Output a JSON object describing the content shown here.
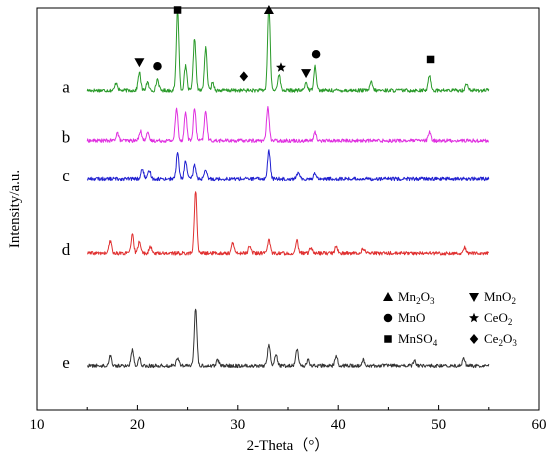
{
  "chart_data": {
    "type": "line",
    "xlabel": "2-Theta（°）",
    "ylabel": "Intensity/a.u.",
    "xlim": [
      10,
      60
    ],
    "xticks": [
      10,
      20,
      30,
      40,
      50,
      60
    ],
    "x_range": [
      15,
      55
    ],
    "y_ticks_shown": false,
    "series": [
      {
        "label": "a",
        "color": "#2a9a2a",
        "baseline": 0.795,
        "peaks": [
          {
            "x": 17.9,
            "h": 0.02
          },
          {
            "x": 20.2,
            "h": 0.045
          },
          {
            "x": 21.0,
            "h": 0.02
          },
          {
            "x": 22.0,
            "h": 0.028
          },
          {
            "x": 24.0,
            "h": 0.2
          },
          {
            "x": 24.8,
            "h": 0.06
          },
          {
            "x": 25.7,
            "h": 0.13
          },
          {
            "x": 26.8,
            "h": 0.105
          },
          {
            "x": 27.5,
            "h": 0.02
          },
          {
            "x": 33.1,
            "h": 0.21
          },
          {
            "x": 34.1,
            "h": 0.04
          },
          {
            "x": 36.8,
            "h": 0.02
          },
          {
            "x": 37.7,
            "h": 0.06
          },
          {
            "x": 43.3,
            "h": 0.02
          },
          {
            "x": 49.1,
            "h": 0.038
          },
          {
            "x": 52.8,
            "h": 0.018
          }
        ]
      },
      {
        "label": "b",
        "color": "#e030e0",
        "baseline": 0.67,
        "peaks": [
          {
            "x": 18.0,
            "h": 0.02
          },
          {
            "x": 20.3,
            "h": 0.025
          },
          {
            "x": 21.0,
            "h": 0.02
          },
          {
            "x": 23.9,
            "h": 0.08
          },
          {
            "x": 24.8,
            "h": 0.07
          },
          {
            "x": 25.7,
            "h": 0.08
          },
          {
            "x": 26.8,
            "h": 0.075
          },
          {
            "x": 33.0,
            "h": 0.085
          },
          {
            "x": 37.7,
            "h": 0.02
          },
          {
            "x": 49.1,
            "h": 0.02
          }
        ]
      },
      {
        "label": "c",
        "color": "#2020d0",
        "baseline": 0.575,
        "peaks": [
          {
            "x": 20.5,
            "h": 0.025
          },
          {
            "x": 21.2,
            "h": 0.02
          },
          {
            "x": 24.0,
            "h": 0.065
          },
          {
            "x": 24.8,
            "h": 0.045
          },
          {
            "x": 25.7,
            "h": 0.035
          },
          {
            "x": 26.8,
            "h": 0.02
          },
          {
            "x": 33.1,
            "h": 0.07
          },
          {
            "x": 36.0,
            "h": 0.015
          },
          {
            "x": 37.7,
            "h": 0.015
          }
        ]
      },
      {
        "label": "d",
        "color": "#e03030",
        "baseline": 0.39,
        "peaks": [
          {
            "x": 17.3,
            "h": 0.03
          },
          {
            "x": 19.5,
            "h": 0.045
          },
          {
            "x": 20.2,
            "h": 0.03
          },
          {
            "x": 21.3,
            "h": 0.015
          },
          {
            "x": 25.8,
            "h": 0.155
          },
          {
            "x": 29.5,
            "h": 0.025
          },
          {
            "x": 31.2,
            "h": 0.02
          },
          {
            "x": 33.1,
            "h": 0.035
          },
          {
            "x": 35.9,
            "h": 0.03
          },
          {
            "x": 37.3,
            "h": 0.015
          },
          {
            "x": 39.8,
            "h": 0.018
          },
          {
            "x": 42.5,
            "h": 0.012
          },
          {
            "x": 52.6,
            "h": 0.015
          }
        ]
      },
      {
        "label": "e",
        "color": "#333333",
        "baseline": 0.11,
        "peaks": [
          {
            "x": 17.3,
            "h": 0.025
          },
          {
            "x": 19.5,
            "h": 0.04
          },
          {
            "x": 20.2,
            "h": 0.02
          },
          {
            "x": 24.0,
            "h": 0.02
          },
          {
            "x": 25.8,
            "h": 0.145
          },
          {
            "x": 28.0,
            "h": 0.015
          },
          {
            "x": 33.1,
            "h": 0.055
          },
          {
            "x": 33.8,
            "h": 0.03
          },
          {
            "x": 35.9,
            "h": 0.04
          },
          {
            "x": 37.0,
            "h": 0.015
          },
          {
            "x": 39.8,
            "h": 0.025
          },
          {
            "x": 42.5,
            "h": 0.015
          },
          {
            "x": 47.6,
            "h": 0.012
          },
          {
            "x": 52.5,
            "h": 0.02
          }
        ]
      }
    ],
    "markers": [
      {
        "phase": "MnO2",
        "symbol": "triangle-down",
        "x": 20.2,
        "y": 0.865
      },
      {
        "phase": "MnO",
        "symbol": "circle",
        "x": 22.0,
        "y": 0.855
      },
      {
        "phase": "MnSO4",
        "symbol": "square",
        "x": 24.0,
        "y": 0.995
      },
      {
        "phase": "Mn2O3",
        "symbol": "triangle-up",
        "x": 33.1,
        "y": 0.995
      },
      {
        "phase": "Ce2O3",
        "symbol": "diamond",
        "x": 30.6,
        "y": 0.83
      },
      {
        "phase": "CeO2",
        "symbol": "star",
        "x": 34.3,
        "y": 0.852
      },
      {
        "phase": "MnO2",
        "symbol": "triangle-down",
        "x": 36.8,
        "y": 0.838
      },
      {
        "phase": "MnO",
        "symbol": "circle",
        "x": 37.8,
        "y": 0.885
      },
      {
        "phase": "MnSO4",
        "symbol": "square",
        "x": 49.2,
        "y": 0.872
      }
    ],
    "legend": {
      "placement": "lower-right",
      "entries": [
        {
          "symbol": "triangle-up",
          "text": "Mn",
          "sub1": "2",
          "text2": "O",
          "sub2": "3"
        },
        {
          "symbol": "triangle-down",
          "text": "MnO",
          "sub1": "2",
          "text2": "",
          "sub2": ""
        },
        {
          "symbol": "circle",
          "text": "MnO",
          "sub1": "",
          "text2": "",
          "sub2": ""
        },
        {
          "symbol": "star",
          "text": "CeO",
          "sub1": "2",
          "text2": "",
          "sub2": ""
        },
        {
          "symbol": "square",
          "text": "MnSO",
          "sub1": "4",
          "text2": "",
          "sub2": ""
        },
        {
          "symbol": "diamond",
          "text": "Ce",
          "sub1": "2",
          "text2": "O",
          "sub2": "3"
        }
      ]
    }
  }
}
